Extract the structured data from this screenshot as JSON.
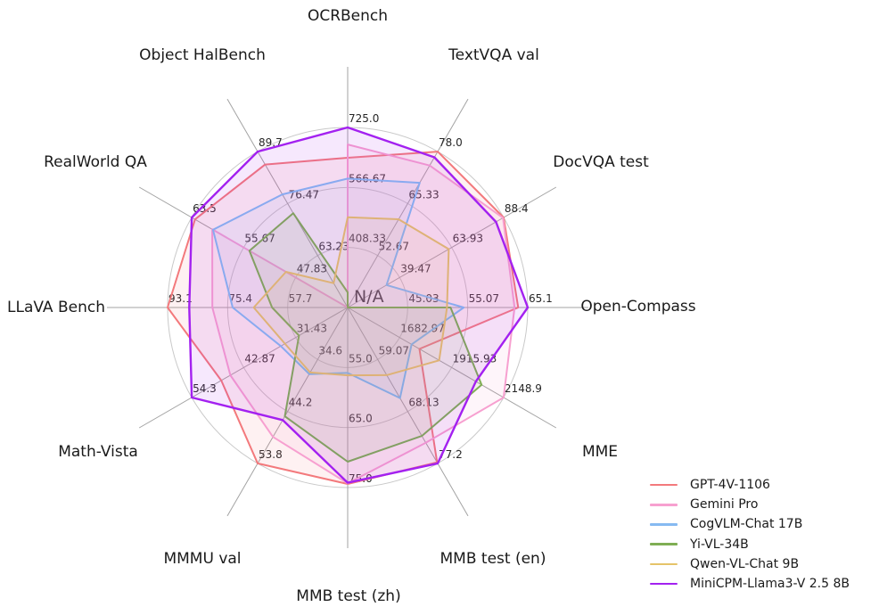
{
  "figure": {
    "background": "#ffffff"
  },
  "style": {
    "grid_circle_color": "#c9c9c9",
    "grid_spoke_color": "#a3a3a3",
    "title_color": "#1a1a1a",
    "tick_color": "#262626"
  },
  "chart_data": {
    "type": "radar",
    "title": "",
    "center_label": "N/A",
    "legend_position": "lower right",
    "grid": "on",
    "num_rings": 3,
    "axes": [
      {
        "label": "OCRBench",
        "min": 250,
        "max": 725.0,
        "ticks": [
          408.33,
          566.67,
          725.0
        ],
        "tick_labels": [
          "408.33",
          "566.67",
          "725.0"
        ]
      },
      {
        "label": "TextVQA val",
        "min": 40,
        "max": 78.0,
        "ticks": [
          52.67,
          65.33,
          78.0
        ],
        "tick_labels": [
          "52.67",
          "65.33",
          "78.0"
        ]
      },
      {
        "label": "DocVQA test",
        "min": 15,
        "max": 88.4,
        "ticks": [
          39.47,
          63.93,
          88.4
        ],
        "tick_labels": [
          "39.47",
          "63.93",
          "88.4"
        ]
      },
      {
        "label": "Open-Compass",
        "min": 35,
        "max": 65.1,
        "ticks": [
          45.03,
          55.07,
          65.1
        ],
        "tick_labels": [
          "45.03",
          "55.07",
          "65.1"
        ]
      },
      {
        "label": "MME",
        "min": 1450,
        "max": 2148.9,
        "ticks": [
          1682.97,
          1915.93,
          2148.9
        ],
        "tick_labels": [
          "1682.97",
          "1915.93",
          "2148.9"
        ]
      },
      {
        "label": "MMB test (en)",
        "min": 50,
        "max": 77.2,
        "ticks": [
          59.07,
          68.13,
          77.2
        ],
        "tick_labels": [
          "59.07",
          "68.13",
          "77.2"
        ]
      },
      {
        "label": "MMB test (zh)",
        "min": 45,
        "max": 75.0,
        "ticks": [
          55.0,
          65.0,
          75.0
        ],
        "tick_labels": [
          "55.0",
          "65.0",
          "75.0"
        ]
      },
      {
        "label": "MMMU val",
        "min": 25,
        "max": 53.8,
        "ticks": [
          34.6,
          44.2,
          53.8
        ],
        "tick_labels": [
          "34.6",
          "44.2",
          "53.8"
        ]
      },
      {
        "label": "Math-Vista",
        "min": 20,
        "max": 54.3,
        "ticks": [
          31.43,
          42.87,
          54.3
        ],
        "tick_labels": [
          "31.43",
          "42.87",
          "54.3"
        ]
      },
      {
        "label": "LLaVA Bench",
        "min": 40,
        "max": 93.1,
        "ticks": [
          57.7,
          75.4,
          93.1
        ],
        "tick_labels": [
          "57.7",
          "75.4",
          "93.1"
        ]
      },
      {
        "label": "RealWorld QA",
        "min": 40,
        "max": 63.5,
        "ticks": [
          47.83,
          55.67,
          63.5
        ],
        "tick_labels": [
          "47.83",
          "55.67",
          "63.5"
        ]
      },
      {
        "label": "Object HalBench",
        "min": 50,
        "max": 89.7,
        "ticks": [
          63.23,
          76.47,
          89.7
        ],
        "tick_labels": [
          "63.23",
          "76.47",
          "89.7"
        ]
      }
    ],
    "series": [
      {
        "name": "GPT-4V-1106",
        "color": "#f3797c",
        "values": [
          645,
          78.0,
          88.4,
          63.5,
          1771.5,
          77.0,
          74.4,
          53.8,
          47.8,
          93.1,
          63.0,
          86.4
        ]
      },
      {
        "name": "Gemini Pro",
        "color": "#f7a0d0",
        "values": [
          680,
          74.6,
          88.1,
          62.9,
          2148.9,
          73.6,
          74.3,
          48.9,
          45.8,
          79.9,
          60.4,
          null
        ]
      },
      {
        "name": "CogVLM-Chat 17B",
        "color": "#86baf1",
        "values": [
          590,
          70.4,
          33.3,
          54.4,
          1736.6,
          65.8,
          55.9,
          37.3,
          34.7,
          73.9,
          60.3,
          78.8
        ]
      },
      {
        "name": "Yi-VL-34B",
        "color": "#7fae54",
        "values": [
          290,
          null,
          null,
          52.2,
          2050.2,
          72.4,
          70.7,
          45.1,
          30.7,
          62.3,
          54.8,
          74.0
        ]
      },
      {
        "name": "Qwen-VL-Chat 9B",
        "color": "#e5c369",
        "values": [
          488,
          61.5,
          62.6,
          51.6,
          1860.0,
          61.8,
          56.3,
          37.0,
          33.8,
          67.7,
          49.3,
          56.2
        ]
      },
      {
        "name": "MiniCPM-Llama3-V 2.5 8B",
        "color": "#a321f0",
        "values": [
          725,
          76.6,
          84.8,
          65.1,
          2024.6,
          77.2,
          74.2,
          45.8,
          54.3,
          86.7,
          63.5,
          89.7
        ]
      }
    ]
  }
}
